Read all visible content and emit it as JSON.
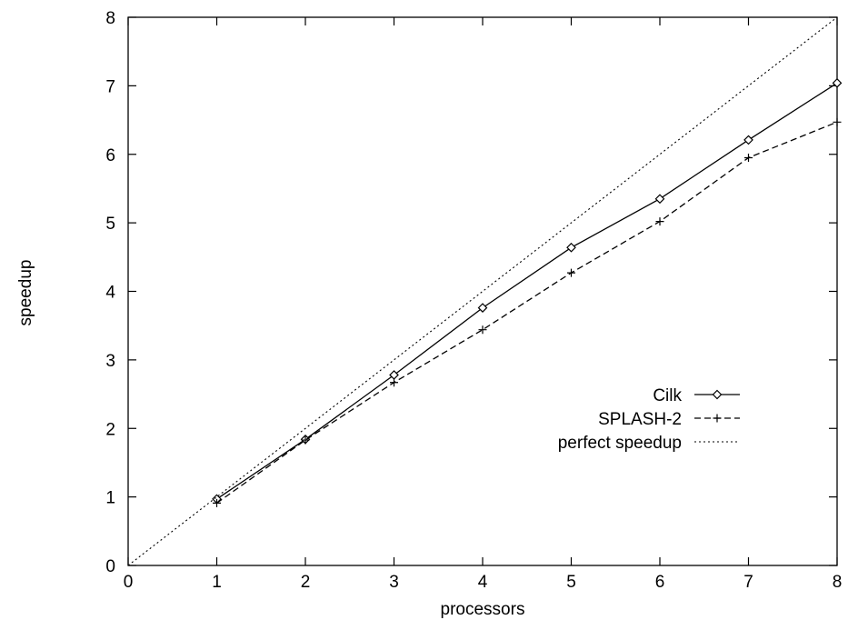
{
  "chart_data": {
    "type": "line",
    "title": "",
    "xlabel": "processors",
    "ylabel": "speedup",
    "xlim": [
      0,
      8
    ],
    "ylim": [
      0,
      8
    ],
    "xticks": [
      "0",
      "1",
      "2",
      "3",
      "4",
      "5",
      "6",
      "7",
      "8"
    ],
    "yticks": [
      "0",
      "1",
      "2",
      "3",
      "4",
      "5",
      "6",
      "7",
      "8"
    ],
    "grid": false,
    "legend_position": "right-middle",
    "series": [
      {
        "name": "Cilk",
        "style": "solid",
        "marker": "diamond",
        "x": [
          1,
          2,
          3,
          4,
          5,
          6,
          7,
          8
        ],
        "y": [
          0.97,
          1.84,
          2.78,
          3.76,
          4.64,
          5.35,
          6.21,
          7.04
        ]
      },
      {
        "name": "SPLASH-2",
        "style": "dashed",
        "marker": "plus",
        "x": [
          1,
          2,
          3,
          4,
          5,
          6,
          7,
          8
        ],
        "y": [
          0.91,
          1.83,
          2.67,
          3.44,
          4.27,
          5.02,
          5.95,
          6.47
        ]
      },
      {
        "name": "perfect speedup",
        "style": "dotted",
        "marker": "none",
        "x": [
          0,
          8
        ],
        "y": [
          0,
          8
        ]
      }
    ]
  }
}
